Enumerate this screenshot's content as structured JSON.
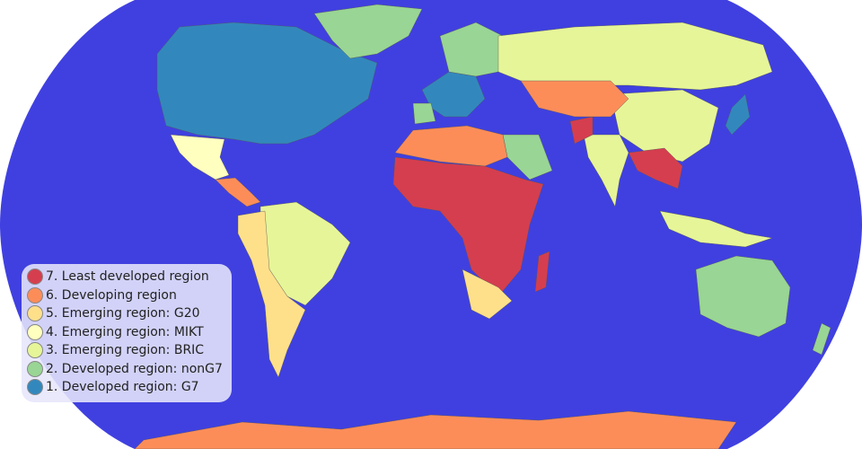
{
  "legend": {
    "items": [
      {
        "label": "7. Least developed region",
        "color": "#d53e4f"
      },
      {
        "label": "6. Developing region",
        "color": "#fc8d59"
      },
      {
        "label": "5. Emerging region: G20",
        "color": "#fee08b"
      },
      {
        "label": "4. Emerging region: MIKT",
        "color": "#ffffbf"
      },
      {
        "label": "3. Emerging region: BRIC",
        "color": "#e6f598"
      },
      {
        "label": "2. Developed region: nonG7",
        "color": "#99d594"
      },
      {
        "label": "1. Developed region: G7",
        "color": "#3288bd"
      }
    ]
  },
  "colors": {
    "ocean": "#4040e0"
  }
}
